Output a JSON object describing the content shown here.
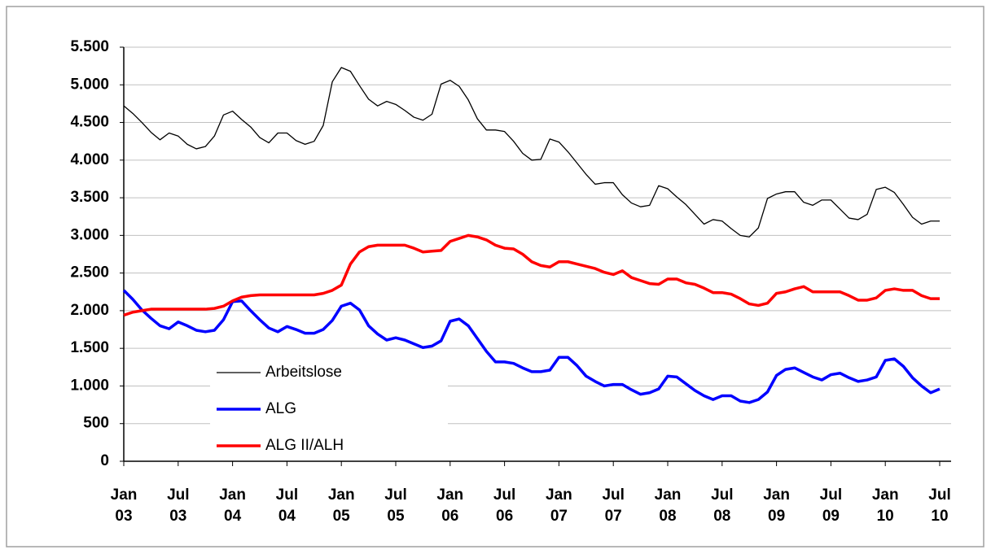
{
  "chart_data": {
    "type": "line",
    "categories": [
      "Jan 03",
      null,
      null,
      null,
      null,
      null,
      "Jul 03",
      null,
      null,
      null,
      null,
      null,
      "Jan 04",
      null,
      null,
      null,
      null,
      null,
      "Jul 04",
      null,
      null,
      null,
      null,
      null,
      "Jan 05",
      null,
      null,
      null,
      null,
      null,
      "Jul 05",
      null,
      null,
      null,
      null,
      null,
      "Jan 06",
      null,
      null,
      null,
      null,
      null,
      "Jul 06",
      null,
      null,
      null,
      null,
      null,
      "Jan 07",
      null,
      null,
      null,
      null,
      null,
      "Jul 07",
      null,
      null,
      null,
      null,
      null,
      "Jan 08",
      null,
      null,
      null,
      null,
      null,
      "Jul 08",
      null,
      null,
      null,
      null,
      null,
      "Jan 09",
      null,
      null,
      null,
      null,
      null,
      "Jul 09",
      null,
      null,
      null,
      null,
      null,
      "Jan 10",
      null,
      null,
      null,
      null,
      null,
      "Jul 10"
    ],
    "series": [
      {
        "name": "Arbeitslose",
        "color": "#000000",
        "width": 1.3,
        "values": [
          4720,
          4620,
          4500,
          4370,
          4270,
          4360,
          4320,
          4210,
          4150,
          4180,
          4320,
          4600,
          4650,
          4540,
          4440,
          4300,
          4230,
          4360,
          4360,
          4260,
          4210,
          4250,
          4460,
          5040,
          5230,
          5180,
          4990,
          4810,
          4720,
          4780,
          4740,
          4660,
          4570,
          4530,
          4610,
          5010,
          5060,
          4980,
          4800,
          4550,
          4400,
          4400,
          4380,
          4250,
          4090,
          4000,
          4010,
          4280,
          4240,
          4110,
          3960,
          3810,
          3680,
          3700,
          3700,
          3540,
          3430,
          3380,
          3400,
          3660,
          3620,
          3510,
          3410,
          3280,
          3150,
          3210,
          3190,
          3090,
          3000,
          2980,
          3100,
          3490,
          3550,
          3580,
          3580,
          3440,
          3400,
          3470,
          3470,
          3350,
          3230,
          3210,
          3280,
          3610,
          3640,
          3570,
          3410,
          3240,
          3150,
          3190,
          3190
        ]
      },
      {
        "name": "ALG",
        "color": "#0000ff",
        "width": 3.5,
        "values": [
          2270,
          2150,
          2010,
          1900,
          1800,
          1760,
          1850,
          1800,
          1740,
          1720,
          1740,
          1880,
          2120,
          2130,
          2000,
          1880,
          1770,
          1720,
          1790,
          1750,
          1700,
          1700,
          1750,
          1870,
          2060,
          2100,
          2010,
          1800,
          1690,
          1610,
          1640,
          1610,
          1560,
          1510,
          1530,
          1600,
          1860,
          1890,
          1800,
          1630,
          1460,
          1320,
          1320,
          1300,
          1240,
          1190,
          1190,
          1210,
          1380,
          1380,
          1270,
          1130,
          1060,
          1000,
          1020,
          1020,
          950,
          890,
          910,
          960,
          1130,
          1120,
          1030,
          940,
          870,
          820,
          870,
          870,
          800,
          780,
          820,
          920,
          1140,
          1220,
          1240,
          1180,
          1120,
          1080,
          1150,
          1170,
          1110,
          1060,
          1080,
          1120,
          1340,
          1360,
          1260,
          1110,
          1000,
          910,
          960
        ]
      },
      {
        "name": "ALG II/ALH",
        "color": "#ff0000",
        "width": 3.5,
        "values": [
          1940,
          1980,
          2000,
          2020,
          2020,
          2020,
          2020,
          2020,
          2020,
          2020,
          2030,
          2060,
          2130,
          2180,
          2200,
          2210,
          2210,
          2210,
          2210,
          2210,
          2210,
          2210,
          2230,
          2270,
          2340,
          2620,
          2780,
          2850,
          2870,
          2870,
          2870,
          2870,
          2830,
          2780,
          2790,
          2800,
          2920,
          2960,
          3000,
          2980,
          2940,
          2870,
          2830,
          2820,
          2750,
          2650,
          2600,
          2580,
          2650,
          2650,
          2620,
          2590,
          2560,
          2510,
          2480,
          2530,
          2440,
          2400,
          2360,
          2350,
          2420,
          2420,
          2370,
          2350,
          2300,
          2240,
          2240,
          2220,
          2160,
          2090,
          2070,
          2100,
          2230,
          2250,
          2290,
          2320,
          2250,
          2250,
          2250,
          2250,
          2200,
          2140,
          2140,
          2170,
          2270,
          2290,
          2270,
          2270,
          2200,
          2160,
          2160
        ]
      }
    ],
    "ylim": [
      0,
      5500
    ],
    "yticks": [
      0,
      500,
      {
        "value": 1000,
        "label": "1.000"
      },
      {
        "value": 1500,
        "label": "1.500"
      },
      {
        "value": 2000,
        "label": "2.000"
      },
      {
        "value": 2500,
        "label": "2.500"
      },
      {
        "value": 3000,
        "label": "3.000"
      },
      {
        "value": 3500,
        "label": "3.500"
      },
      {
        "value": 4000,
        "label": "4.000"
      },
      {
        "value": 4500,
        "label": "4.500"
      },
      {
        "value": 5000,
        "label": "5.000"
      },
      {
        "value": 5500,
        "label": "5.500"
      }
    ],
    "grid": true,
    "legend": "lower left"
  }
}
